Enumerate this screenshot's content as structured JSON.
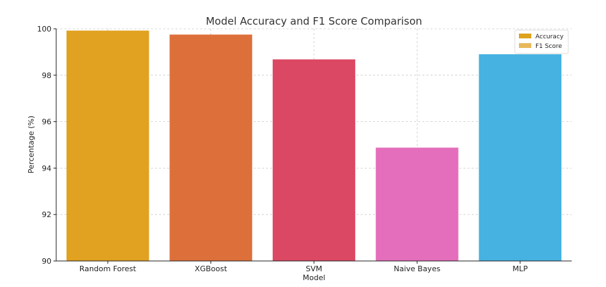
{
  "chart_data": {
    "type": "bar",
    "title": "Model Accuracy and F1 Score Comparison",
    "xlabel": "Model",
    "ylabel": "Percentage (%)",
    "categories": [
      "Random Forest",
      "XGBoost",
      "SVM",
      "Naive Bayes",
      "MLP"
    ],
    "series": [
      {
        "name": "Accuracy",
        "values": [
          99.92,
          99.75,
          98.68,
          94.88,
          98.9
        ],
        "colors": [
          "#e1a221",
          "#dd703a",
          "#db4863",
          "#e46ebb",
          "#45b2e2"
        ]
      },
      {
        "name": "F1 Score",
        "values": [
          99.92,
          99.75,
          98.68,
          94.88,
          98.9
        ],
        "colors": [
          "#e1a221",
          "#dd703a",
          "#db4863",
          "#e46ebb",
          "#45b2e2"
        ]
      }
    ],
    "ylim": [
      90,
      100
    ],
    "yticks": [
      90,
      92,
      94,
      96,
      98,
      100
    ],
    "grid": true,
    "legend": {
      "position": "top-right",
      "entries": [
        {
          "label": "Accuracy",
          "color": "#dea21c"
        },
        {
          "label": "F1 Score",
          "color": "#e8b95c"
        }
      ]
    }
  }
}
